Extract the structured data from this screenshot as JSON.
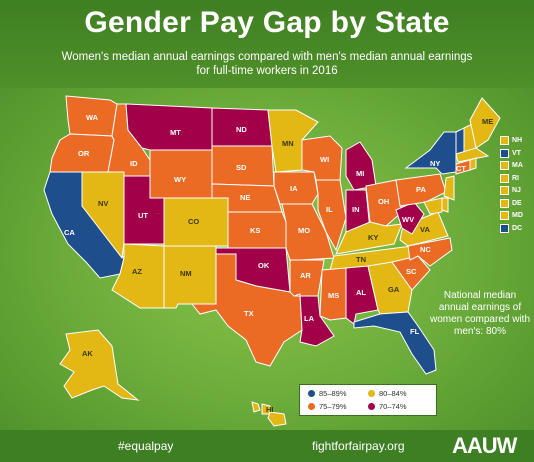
{
  "header": {
    "title": "Gender Pay Gap by State",
    "subtitle": "Women's median annual earnings compared with men's median annual earnings for full-time workers in 2016"
  },
  "colors": {
    "c85_89": "#1f4e8c",
    "c80_84": "#e3b714",
    "c75_79": "#eb6a24",
    "c70_74": "#a3004a"
  },
  "legend": {
    "items": [
      {
        "label": "85–89%",
        "color": "#1f4e8c"
      },
      {
        "label": "80–84%",
        "color": "#e3b714"
      },
      {
        "label": "75–79%",
        "color": "#eb6a24"
      },
      {
        "label": "70–74%",
        "color": "#a3004a"
      }
    ]
  },
  "northeast_key": [
    {
      "abbr": "NH",
      "color": "#e3b714"
    },
    {
      "abbr": "VT",
      "color": "#1f4e8c"
    },
    {
      "abbr": "MA",
      "color": "#e3b714"
    },
    {
      "abbr": "RI",
      "color": "#e3b714"
    },
    {
      "abbr": "NJ",
      "color": "#e3b714"
    },
    {
      "abbr": "DE",
      "color": "#e3b714"
    },
    {
      "abbr": "MD",
      "color": "#e3b714"
    },
    {
      "abbr": "DC",
      "color": "#1f4e8c"
    }
  ],
  "states": {
    "WA": "WA",
    "OR": "OR",
    "CA": "CA",
    "NV": "NV",
    "ID": "ID",
    "MT": "MT",
    "WY": "WY",
    "UT": "UT",
    "AZ": "AZ",
    "CO": "CO",
    "NM": "NM",
    "ND": "ND",
    "SD": "SD",
    "NE": "NE",
    "KS": "KS",
    "OK": "OK",
    "TX": "TX",
    "MN": "MN",
    "IA": "IA",
    "MO": "MO",
    "AR": "AR",
    "LA": "LA",
    "WI": "WI",
    "IL": "IL",
    "MI": "MI",
    "IN": "IN",
    "KY": "KY",
    "TN": "TN",
    "MS": "MS",
    "AL": "AL",
    "GA": "GA",
    "FL": "FL",
    "SC": "SC",
    "NC": "NC",
    "VA": "VA",
    "WV": "WV",
    "OH": "OH",
    "PA": "PA",
    "NY": "NY",
    "ME": "ME",
    "CT": "CT",
    "AK": "AK",
    "HI": "HI"
  },
  "national": "National median annual earnings of women compared with men's: 80%",
  "footer": {
    "hashtag": "#equalpay",
    "site": "fightforfairpay.org",
    "logo": "AAUW"
  }
}
